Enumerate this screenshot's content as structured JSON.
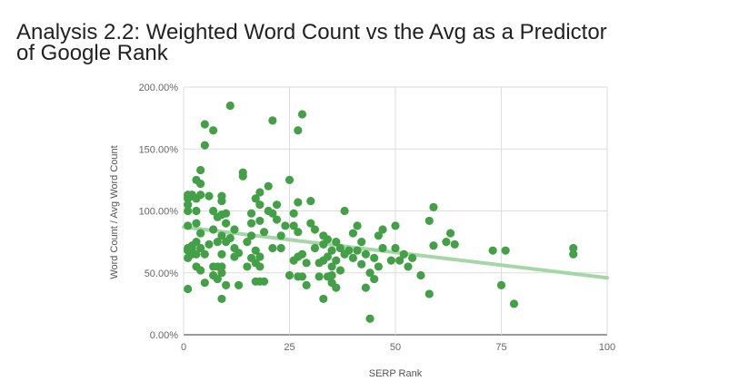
{
  "page": {
    "title_line1": "Analysis 2.2: Weighted Word Count vs the Avg as a Predictor",
    "title_line2": "of Google Rank"
  },
  "chart_data": {
    "type": "scatter",
    "title": "Analysis 2.2: Weighted Word Count vs the Avg as a Predictor of Google Rank",
    "xlabel": "SERP Rank",
    "ylabel": "Word Count / Avg Word Count",
    "xlim": [
      0,
      100
    ],
    "ylim": [
      0,
      200
    ],
    "x_ticks": [
      0,
      25,
      50,
      75,
      100
    ],
    "y_ticks": [
      0,
      50,
      100,
      150,
      200
    ],
    "x_tick_labels": [
      "0",
      "25",
      "50",
      "75",
      "100"
    ],
    "y_tick_labels": [
      "0.00%",
      "50.00%",
      "100.00%",
      "150.00%",
      "200.00%"
    ],
    "grid": true,
    "legend": "none",
    "point_color": "#43a047",
    "trendline": {
      "type": "linear",
      "color": "#a5d6a7",
      "x_start": 0,
      "y_start": 87,
      "x_end": 100,
      "y_end": 46
    },
    "points": [
      [
        1,
        37
      ],
      [
        1,
        62
      ],
      [
        1,
        68
      ],
      [
        1,
        70
      ],
      [
        1,
        88
      ],
      [
        1,
        100
      ],
      [
        1,
        105
      ],
      [
        1,
        110
      ],
      [
        1,
        113
      ],
      [
        2,
        65
      ],
      [
        2,
        70
      ],
      [
        2,
        72
      ],
      [
        2,
        112
      ],
      [
        2,
        113
      ],
      [
        3,
        55
      ],
      [
        3,
        65
      ],
      [
        3,
        75
      ],
      [
        3,
        90
      ],
      [
        3,
        100
      ],
      [
        3,
        110
      ],
      [
        3,
        125
      ],
      [
        4,
        52
      ],
      [
        4,
        70
      ],
      [
        4,
        82
      ],
      [
        4,
        113
      ],
      [
        4,
        122
      ],
      [
        4,
        133
      ],
      [
        5,
        42
      ],
      [
        5,
        65
      ],
      [
        5,
        153
      ],
      [
        5,
        170
      ],
      [
        6,
        73
      ],
      [
        6,
        112
      ],
      [
        7,
        48
      ],
      [
        7,
        55
      ],
      [
        7,
        85
      ],
      [
        7,
        100
      ],
      [
        7,
        165
      ],
      [
        8,
        45
      ],
      [
        8,
        55
      ],
      [
        8,
        75
      ],
      [
        8,
        95
      ],
      [
        9,
        29
      ],
      [
        9,
        50
      ],
      [
        9,
        55
      ],
      [
        9,
        65
      ],
      [
        9,
        80
      ],
      [
        9,
        97
      ],
      [
        9,
        108
      ],
      [
        9,
        112
      ],
      [
        10,
        40
      ],
      [
        10,
        75
      ],
      [
        10,
        90
      ],
      [
        10,
        98
      ],
      [
        11,
        78
      ],
      [
        11,
        185
      ],
      [
        12,
        63
      ],
      [
        12,
        70
      ],
      [
        12,
        85
      ],
      [
        13,
        40
      ],
      [
        13,
        66
      ],
      [
        14,
        128
      ],
      [
        14,
        131
      ],
      [
        15,
        55
      ],
      [
        15,
        75
      ],
      [
        16,
        62
      ],
      [
        16,
        80
      ],
      [
        16,
        90
      ],
      [
        16,
        98
      ],
      [
        17,
        43
      ],
      [
        17,
        58
      ],
      [
        17,
        68
      ],
      [
        17,
        110
      ],
      [
        18,
        43
      ],
      [
        18,
        55
      ],
      [
        18,
        63
      ],
      [
        18,
        92
      ],
      [
        18,
        105
      ],
      [
        18,
        115
      ],
      [
        19,
        43
      ],
      [
        19,
        83
      ],
      [
        20,
        100
      ],
      [
        20,
        120
      ],
      [
        21,
        70
      ],
      [
        21,
        98
      ],
      [
        21,
        173
      ],
      [
        22,
        93
      ],
      [
        22,
        105
      ],
      [
        23,
        70
      ],
      [
        23,
        80
      ],
      [
        24,
        88
      ],
      [
        25,
        48
      ],
      [
        25,
        125
      ],
      [
        26,
        60
      ],
      [
        26,
        88
      ],
      [
        26,
        98
      ],
      [
        27,
        47
      ],
      [
        27,
        63
      ],
      [
        27,
        83
      ],
      [
        27,
        107
      ],
      [
        27,
        165
      ],
      [
        28,
        47
      ],
      [
        28,
        65
      ],
      [
        28,
        178
      ],
      [
        29,
        40
      ],
      [
        29,
        58
      ],
      [
        30,
        90
      ],
      [
        30,
        108
      ],
      [
        31,
        70
      ],
      [
        31,
        85
      ],
      [
        32,
        47
      ],
      [
        32,
        58
      ],
      [
        33,
        29
      ],
      [
        33,
        60
      ],
      [
        33,
        73
      ],
      [
        33,
        80
      ],
      [
        34,
        47
      ],
      [
        34,
        63
      ],
      [
        34,
        77
      ],
      [
        35,
        42
      ],
      [
        35,
        48
      ],
      [
        35,
        55
      ],
      [
        35,
        68
      ],
      [
        36,
        38
      ],
      [
        36,
        60
      ],
      [
        36,
        75
      ],
      [
        37,
        52
      ],
      [
        37,
        70
      ],
      [
        38,
        65
      ],
      [
        38,
        100
      ],
      [
        39,
        68
      ],
      [
        40,
        62
      ],
      [
        40,
        82
      ],
      [
        41,
        68
      ],
      [
        41,
        88
      ],
      [
        42,
        57
      ],
      [
        42,
        75
      ],
      [
        43,
        38
      ],
      [
        43,
        65
      ],
      [
        44,
        13
      ],
      [
        44,
        50
      ],
      [
        45,
        45
      ],
      [
        45,
        62
      ],
      [
        46,
        55
      ],
      [
        46,
        80
      ],
      [
        47,
        70
      ],
      [
        47,
        85
      ],
      [
        49,
        60
      ],
      [
        50,
        70
      ],
      [
        50,
        88
      ],
      [
        51,
        60
      ],
      [
        52,
        65
      ],
      [
        53,
        55
      ],
      [
        54,
        62
      ],
      [
        56,
        48
      ],
      [
        58,
        33
      ],
      [
        58,
        92
      ],
      [
        59,
        72
      ],
      [
        59,
        103
      ],
      [
        62,
        75
      ],
      [
        63,
        82
      ],
      [
        64,
        73
      ],
      [
        73,
        68
      ],
      [
        75,
        40
      ],
      [
        76,
        68
      ],
      [
        78,
        25
      ],
      [
        92,
        65
      ],
      [
        92,
        70
      ]
    ]
  }
}
